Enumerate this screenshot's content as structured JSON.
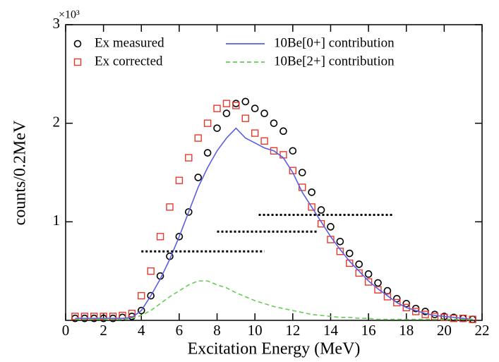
{
  "chart_data": {
    "type": "scatter",
    "x_label": "Excitation Energy (MeV)",
    "y_label": "counts/0.2MeV",
    "y_scale_label": "×10³",
    "xlim": [
      0,
      22
    ],
    "xticks": [
      0,
      2,
      4,
      6,
      8,
      10,
      12,
      14,
      16,
      18,
      20,
      22
    ],
    "ylim": [
      0,
      3
    ],
    "yticks": [
      1,
      2,
      3
    ],
    "x": [
      0.5,
      1,
      1.5,
      2,
      2.5,
      3,
      3.5,
      4,
      4.5,
      5,
      5.5,
      6,
      6.5,
      7,
      7.5,
      8,
      8.5,
      9,
      9.5,
      10,
      10.5,
      11,
      11.5,
      12,
      12.5,
      13,
      13.5,
      14,
      14.5,
      15,
      15.5,
      16,
      16.5,
      17,
      17.5,
      18,
      18.5,
      19,
      19.5,
      20,
      20.5,
      21,
      21.5
    ],
    "series": [
      {
        "name": "Ex measured",
        "color": "#000000",
        "marker": "circle",
        "values": [
          0.02,
          0.02,
          0.02,
          0.02,
          0.02,
          0.03,
          0.04,
          0.1,
          0.25,
          0.45,
          0.65,
          0.85,
          1.1,
          1.45,
          1.7,
          1.95,
          2.1,
          2.2,
          2.22,
          2.15,
          2.1,
          2.0,
          1.92,
          1.72,
          1.5,
          1.3,
          1.12,
          0.95,
          0.8,
          0.68,
          0.57,
          0.47,
          0.38,
          0.3,
          0.22,
          0.17,
          0.12,
          0.09,
          0.06,
          0.04,
          0.03,
          0.02,
          0.01
        ]
      },
      {
        "name": "Ex corrected",
        "color": "#e8392a",
        "marker": "square",
        "values": [
          0.04,
          0.04,
          0.04,
          0.04,
          0.04,
          0.05,
          0.07,
          0.25,
          0.5,
          0.85,
          1.15,
          1.42,
          1.65,
          1.85,
          2.0,
          2.15,
          2.2,
          2.18,
          2.05,
          1.9,
          1.82,
          1.72,
          1.68,
          1.52,
          1.35,
          1.15,
          0.98,
          0.82,
          0.7,
          0.58,
          0.48,
          0.39,
          0.31,
          0.24,
          0.18,
          0.13,
          0.09,
          0.06,
          0.04,
          0.03,
          0.02,
          0.02,
          0.01
        ]
      },
      {
        "name": "10Be[0+] contribution",
        "color": "#5a5ee0",
        "marker": "line",
        "values": [
          0.02,
          0.02,
          0.02,
          0.02,
          0.02,
          0.02,
          0.03,
          0.1,
          0.25,
          0.42,
          0.62,
          0.85,
          1.1,
          1.35,
          1.55,
          1.72,
          1.85,
          1.95,
          1.85,
          1.8,
          1.75,
          1.72,
          1.65,
          1.5,
          1.3,
          1.15,
          1.0,
          0.85,
          0.72,
          0.6,
          0.5,
          0.4,
          0.32,
          0.25,
          0.18,
          0.13,
          0.1,
          0.07,
          0.05,
          0.04,
          0.03,
          0.02,
          0.01
        ]
      },
      {
        "name": "10Be[2+] contribution",
        "color": "#66cc55",
        "marker": "dashed",
        "values": [
          0.01,
          0.01,
          0.01,
          0.01,
          0.01,
          0.01,
          0.02,
          0.05,
          0.1,
          0.17,
          0.24,
          0.3,
          0.36,
          0.4,
          0.4,
          0.36,
          0.33,
          0.28,
          0.24,
          0.2,
          0.17,
          0.14,
          0.12,
          0.1,
          0.08,
          0.06,
          0.05,
          0.04,
          0.03,
          0.03,
          0.02,
          0.02,
          0.01,
          0.01,
          0.01,
          0.01,
          0.01,
          0.01,
          0.01,
          0.01,
          0.01,
          0.01,
          0.01
        ]
      }
    ],
    "reference_lines": [
      {
        "x": [
          4,
          10.5
        ],
        "y": 0.7
      },
      {
        "x": [
          8,
          13.3
        ],
        "y": 0.9
      },
      {
        "x": [
          10.2,
          17.3
        ],
        "y": 1.07
      }
    ]
  }
}
